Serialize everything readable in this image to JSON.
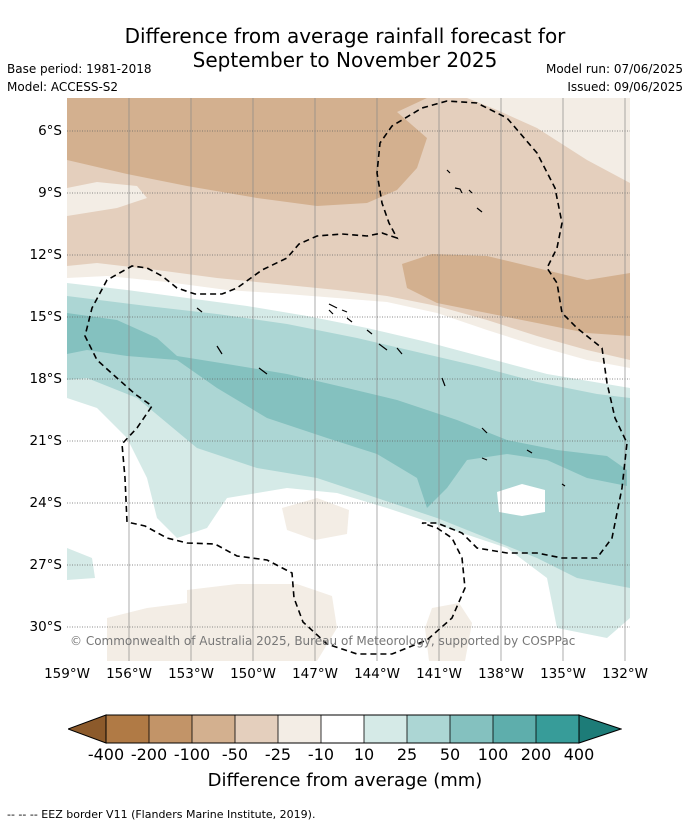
{
  "title": {
    "line1": "Difference from average rainfall forecast for",
    "line2": "September to November 2025"
  },
  "meta": {
    "base_period": "Base period: 1981-2018",
    "model": "Model: ACCESS-S2",
    "model_run": "Model run: 07/06/2025",
    "issued": "Issued: 09/06/2025"
  },
  "axes": {
    "lat_labels": [
      "6°S",
      "9°S",
      "12°S",
      "15°S",
      "18°S",
      "21°S",
      "24°S",
      "27°S",
      "30°S"
    ],
    "lon_labels": [
      "159°W",
      "156°W",
      "153°W",
      "150°W",
      "147°W",
      "144°W",
      "141°W",
      "138°W",
      "135°W",
      "132°W"
    ]
  },
  "copyright": "© Commonwealth of Australia 2025, Bureau of Meteorology, supported by COSPPac",
  "colorbar": {
    "labels": [
      "-400",
      "-200",
      "-100",
      "-50",
      "-25",
      "-10",
      "10",
      "25",
      "50",
      "100",
      "200",
      "400"
    ],
    "colors": [
      "#8c5a2b",
      "#b07a45",
      "#c29468",
      "#d3b08f",
      "#e4cfbd",
      "#f3ede5",
      "#ffffff",
      "#d5eae7",
      "#acd6d4",
      "#84c1bf",
      "#5eaeac",
      "#379c99",
      "#1d7c78"
    ],
    "title": "Difference from average (mm)"
  },
  "footer": "--  --  -- EEZ border V11 (Flanders Marine Institute, 2019)."
}
